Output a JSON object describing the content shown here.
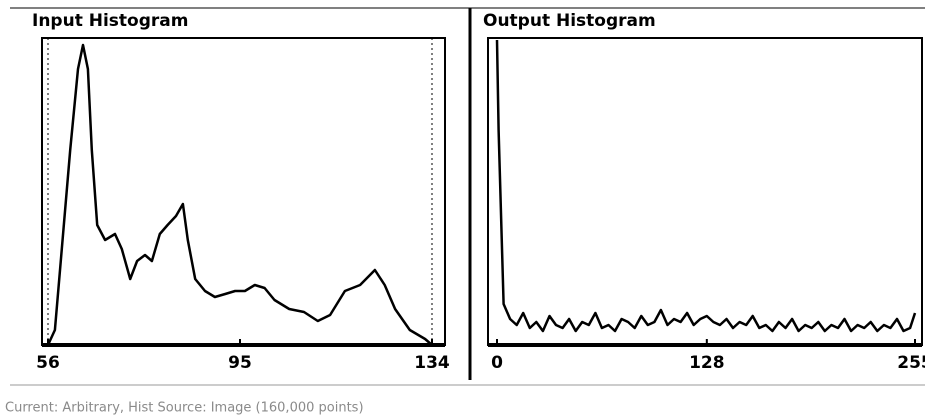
{
  "chart_data": [
    {
      "type": "line",
      "title": "Input Histogram",
      "x": [
        56,
        57.4,
        58.8,
        60.5,
        62.1,
        63.1,
        64.1,
        64.9,
        66,
        67.6,
        69.6,
        71,
        72.7,
        74.1,
        75.7,
        77.1,
        78.7,
        80.3,
        82,
        83.4,
        84.4,
        85.9,
        87.9,
        89.9,
        92,
        94,
        96,
        98,
        100,
        102,
        105,
        108,
        110.8,
        113.3,
        116.3,
        119.4,
        122.4,
        124.4,
        126.5,
        129.5,
        132.6,
        134
      ],
      "values": [
        0,
        5,
        32,
        65,
        92,
        100,
        92,
        65,
        40,
        35,
        37,
        32,
        22,
        28,
        30,
        28,
        37,
        40,
        43,
        47,
        35,
        22,
        18,
        16,
        17,
        18,
        18,
        20,
        19,
        15,
        12,
        11,
        8,
        10,
        18,
        20,
        25,
        20,
        12,
        5,
        2,
        0
      ],
      "xlim": [
        56,
        134
      ],
      "xticks": [
        56,
        95,
        134
      ],
      "ylim": [
        0,
        100
      ],
      "color": "#000000"
    },
    {
      "type": "line",
      "title": "Output Histogram",
      "x": [
        0,
        1,
        4,
        8,
        12,
        16,
        20,
        24,
        28,
        32,
        36,
        40,
        44,
        48,
        52,
        56,
        60,
        64,
        68,
        72,
        76,
        80,
        84,
        88,
        92,
        96,
        100,
        104,
        108,
        112,
        116,
        120,
        124,
        128,
        132,
        136,
        140,
        144,
        148,
        152,
        156,
        160,
        164,
        168,
        172,
        176,
        180,
        184,
        188,
        192,
        196,
        200,
        204,
        208,
        212,
        216,
        220,
        224,
        228,
        232,
        236,
        240,
        244,
        248,
        252,
        255
      ],
      "values": [
        100,
        70,
        12,
        7,
        5,
        9,
        4,
        6,
        3,
        8,
        5,
        4,
        7,
        3,
        6,
        5,
        9,
        4,
        5,
        3,
        7,
        6,
        4,
        8,
        5,
        6,
        10,
        5,
        7,
        6,
        9,
        5,
        7,
        8,
        6,
        5,
        7,
        4,
        6,
        5,
        8,
        4,
        5,
        3,
        6,
        4,
        7,
        3,
        5,
        4,
        6,
        3,
        5,
        4,
        7,
        3,
        5,
        4,
        6,
        3,
        5,
        4,
        7,
        3,
        4,
        9
      ],
      "xlim": [
        0,
        255
      ],
      "xticks": [
        0,
        128,
        255
      ],
      "ylim": [
        0,
        100
      ],
      "color": "#000000"
    }
  ],
  "status": "Current: Arbitrary, Hist Source: Image (160,000 points)"
}
